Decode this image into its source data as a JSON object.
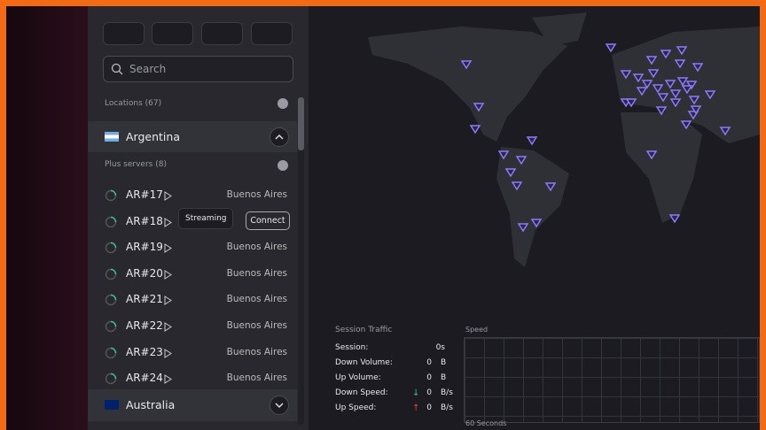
{
  "sidebar": {
    "search_placeholder": "Search",
    "locations_label": "Locations (67)",
    "countries": [
      {
        "name": "Argentina",
        "group_label": "Plus servers (8)",
        "servers": [
          {
            "name": "AR#17",
            "city": "Buenos Aires"
          },
          {
            "name": "AR#18",
            "tooltip": "Streaming",
            "action": "Connect"
          },
          {
            "name": "AR#19",
            "city": "Buenos Aires"
          },
          {
            "name": "AR#20",
            "city": "Buenos Aires"
          },
          {
            "name": "AR#21",
            "city": "Buenos Aires"
          },
          {
            "name": "AR#22",
            "city": "Buenos Aires"
          },
          {
            "name": "AR#23",
            "city": "Buenos Aires"
          },
          {
            "name": "AR#24",
            "city": "Buenos Aires"
          }
        ]
      },
      {
        "name": "Australia"
      }
    ]
  },
  "traffic": {
    "title": "Session Traffic",
    "rows": [
      {
        "label": "Session:",
        "value": "0s"
      },
      {
        "label": "Down Volume:",
        "value": 0,
        "unit": "B"
      },
      {
        "label": "Up Volume:",
        "value": 0,
        "unit": "B"
      },
      {
        "label": "Down Speed:",
        "value": 0,
        "unit": "B/s"
      },
      {
        "label": "Up Speed:",
        "value": 0,
        "unit": "B/s"
      }
    ],
    "speed_title": "Speed",
    "speed_axis": "60 Seconds"
  }
}
